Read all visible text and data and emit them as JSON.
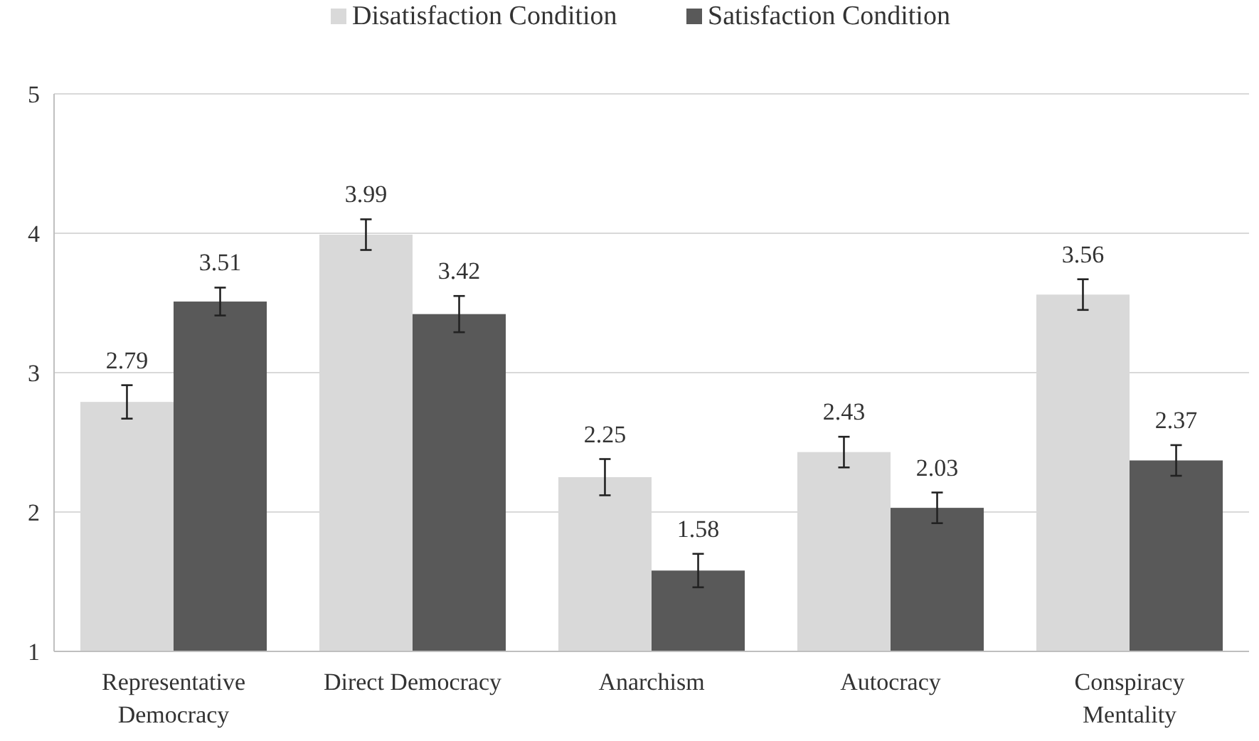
{
  "chart_data": {
    "type": "bar",
    "categories": [
      "Representative Democracy",
      "Direct Democracy",
      "Anarchism",
      "Autocracy",
      "Conspiracy Mentality"
    ],
    "series": [
      {
        "name": "Disatisfaction Condition",
        "color": "#d9d9d9",
        "values": [
          2.79,
          3.99,
          2.25,
          2.43,
          3.56
        ],
        "errors": [
          0.12,
          0.11,
          0.13,
          0.11,
          0.11
        ]
      },
      {
        "name": "Satisfaction Condition",
        "color": "#595959",
        "values": [
          3.51,
          3.42,
          1.58,
          2.03,
          2.37
        ],
        "errors": [
          0.1,
          0.13,
          0.12,
          0.11,
          0.11
        ]
      }
    ],
    "ylim": [
      1,
      5
    ],
    "yticks": [
      1,
      2,
      3,
      4,
      5
    ],
    "grid": "y",
    "legend": "top",
    "data_labels": true
  }
}
